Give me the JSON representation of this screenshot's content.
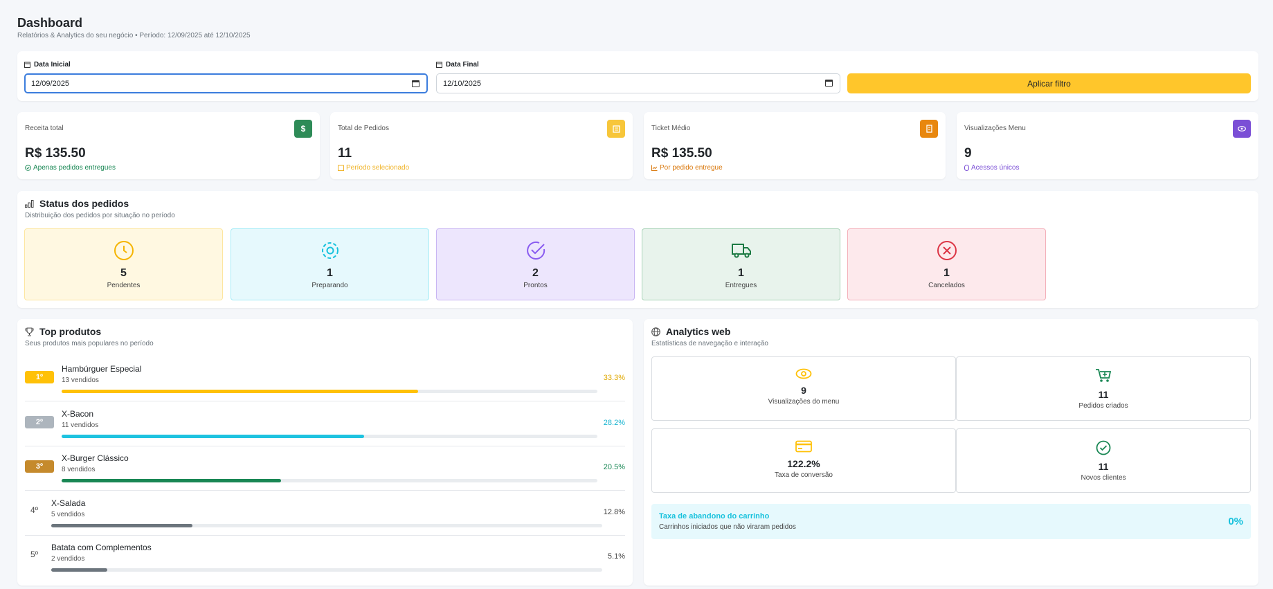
{
  "header": {
    "title": "Dashboard",
    "subtitle": "Relatórios & Analytics do seu negócio • Período: 12/09/2025 até 12/10/2025"
  },
  "filter": {
    "start_label": "Data Inicial",
    "start_value": "12/09/2025",
    "end_label": "Data Final",
    "end_value": "12/10/2025",
    "button": "Aplicar filtro"
  },
  "stats": [
    {
      "label": "Receita total",
      "value": "R$ 135.50",
      "note": "Apenas pedidos entregues"
    },
    {
      "label": "Total de Pedidos",
      "value": "11",
      "note": "Período selecionado"
    },
    {
      "label": "Ticket Médio",
      "value": "R$ 135.50",
      "note": "Por pedido entregue"
    },
    {
      "label": "Visualizações Menu",
      "value": "9",
      "note": "Acessos únicos"
    }
  ],
  "status": {
    "title": "Status dos pedidos",
    "subtitle": "Distribuição dos pedidos por situação no período",
    "items": [
      {
        "count": 5,
        "label": "Pendentes"
      },
      {
        "count": 1,
        "label": "Preparando"
      },
      {
        "count": 2,
        "label": "Prontos"
      },
      {
        "count": 1,
        "label": "Entregues"
      },
      {
        "count": 1,
        "label": "Cancelados"
      }
    ]
  },
  "top_products": {
    "title": "Top produtos",
    "subtitle": "Seus produtos mais populares no período",
    "items": [
      {
        "rank": "1º",
        "name": "Hambúrguer Especial",
        "sold": "13 vendidos",
        "percent": 33.3,
        "percent_label": "33.3%"
      },
      {
        "rank": "2º",
        "name": "X-Bacon",
        "sold": "11 vendidos",
        "percent": 28.2,
        "percent_label": "28.2%"
      },
      {
        "rank": "3º",
        "name": "X-Burger Clássico",
        "sold": "8 vendidos",
        "percent": 20.5,
        "percent_label": "20.5%"
      },
      {
        "rank": "4º",
        "name": "X-Salada",
        "sold": "5 vendidos",
        "percent": 12.8,
        "percent_label": "12.8%"
      },
      {
        "rank": "5º",
        "name": "Batata com Complementos",
        "sold": "2 vendidos",
        "percent": 5.1,
        "percent_label": "5.1%"
      }
    ]
  },
  "analytics": {
    "title": "Analytics web",
    "subtitle": "Estatísticas de navegação e interação",
    "items": [
      {
        "value": "9",
        "label": "Visualizações do menu"
      },
      {
        "value": "11",
        "label": "Pedidos criados"
      },
      {
        "value": "122.2%",
        "label": "Taxa de conversão"
      },
      {
        "value": "11",
        "label": "Novos clientes"
      }
    ],
    "abandon": {
      "title": "Taxa de abandono do carrinho",
      "subtitle": "Carrinhos iniciados que não viraram pedidos",
      "value": "0%"
    }
  }
}
